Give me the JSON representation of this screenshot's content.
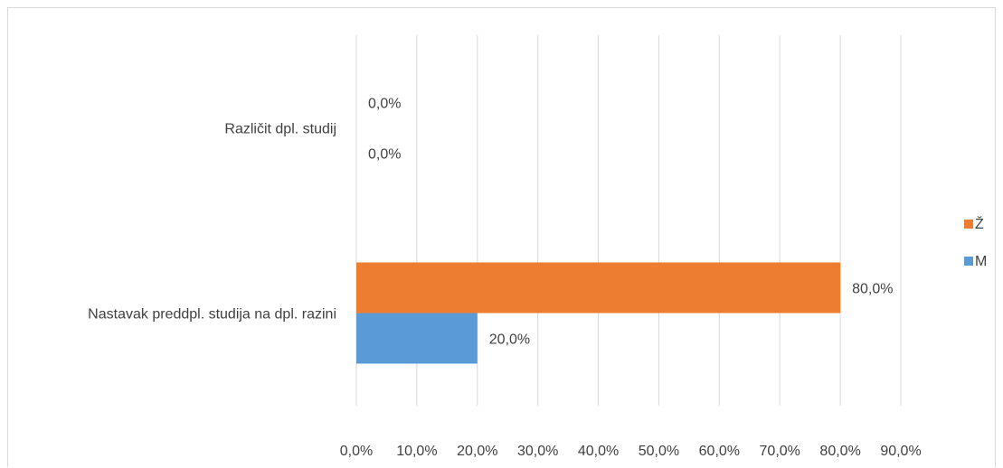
{
  "chart_data": {
    "type": "bar",
    "orientation": "horizontal",
    "categories": [
      "Različit dpl. studij",
      "Nastavak preddpl. studija na dpl. razini"
    ],
    "series": [
      {
        "name": "Ž",
        "color": "#ED7D31",
        "values": [
          0.0,
          80.0
        ],
        "labels": [
          "0,0%",
          "80,0%"
        ]
      },
      {
        "name": "M",
        "color": "#5B9BD5",
        "values": [
          0.0,
          20.0
        ],
        "labels": [
          "0,0%",
          "20,0%"
        ]
      }
    ],
    "xlim": [
      0,
      90
    ],
    "xticks": [
      0,
      10,
      20,
      30,
      40,
      50,
      60,
      70,
      80,
      90
    ],
    "xtick_labels": [
      "0,0%",
      "10,0%",
      "20,0%",
      "30,0%",
      "40,0%",
      "50,0%",
      "60,0%",
      "70,0%",
      "80,0%",
      "90,0%"
    ],
    "grid": true,
    "legend_position": "right"
  }
}
